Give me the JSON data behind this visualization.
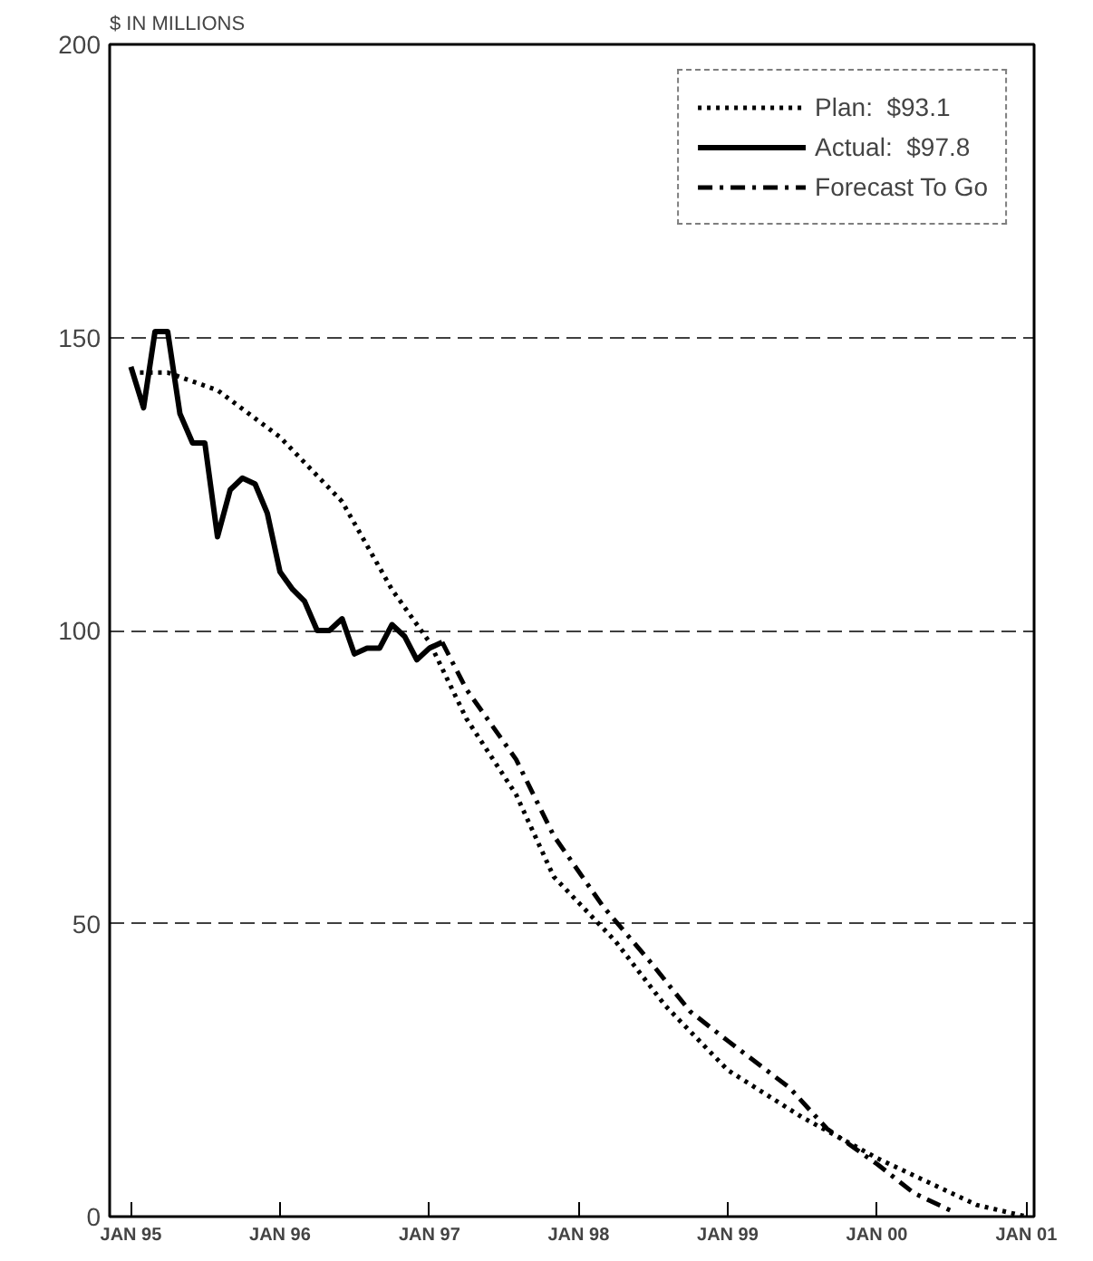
{
  "chart_data": {
    "type": "line",
    "ylabel": "$ IN MILLIONS",
    "xlim": [
      "1994-11-10",
      "2001-01-20"
    ],
    "ylim": [
      0,
      200
    ],
    "xticks": [
      {
        "value": "1995-01",
        "label": "JAN 95"
      },
      {
        "value": "1996-01",
        "label": "JAN 96"
      },
      {
        "value": "1997-01",
        "label": "JAN 97"
      },
      {
        "value": "1998-01",
        "label": "JAN 98"
      },
      {
        "value": "1999-01",
        "label": "JAN 99"
      },
      {
        "value": "2000-01",
        "label": "JAN 00"
      },
      {
        "value": "2001-01",
        "label": "JAN 01"
      }
    ],
    "yticks": [
      0,
      50,
      100,
      150,
      200
    ],
    "grid": "y",
    "legend": "top right",
    "series": [
      {
        "name": "Plan:  $93.1",
        "color": "#000000",
        "line_style": "dotted",
        "x": [
          "1995-01",
          "1995-04",
          "1995-08",
          "1996-01",
          "1996-06",
          "1996-10",
          "1997-01",
          "1997-04",
          "1997-08",
          "1997-11",
          "1998-04",
          "1998-08",
          "1999-01",
          "1999-07",
          "2000-01",
          "2000-06",
          "2000-09",
          "2001-01"
        ],
        "values": [
          144,
          144,
          141,
          133,
          122,
          107,
          98,
          85,
          72,
          58,
          47,
          36,
          25,
          17,
          10,
          5,
          2,
          0
        ]
      },
      {
        "name": "Actual:  $97.8",
        "color": "#000000",
        "line_style": "solid",
        "x": [
          "1995-01",
          "1995-02",
          "1995-03",
          "1995-04",
          "1995-05",
          "1995-06",
          "1995-07",
          "1995-08",
          "1995-09",
          "1995-10",
          "1995-11",
          "1995-12",
          "1996-01",
          "1996-02",
          "1996-03",
          "1996-04",
          "1996-05",
          "1996-06",
          "1996-07",
          "1996-08",
          "1996-09",
          "1996-10",
          "1996-11",
          "1996-12",
          "1997-01",
          "1997-02"
        ],
        "values": [
          145,
          138,
          151,
          151,
          137,
          132,
          132,
          116,
          124,
          126,
          125,
          120,
          110,
          107,
          105,
          100,
          100,
          102,
          96,
          97,
          97,
          101,
          99,
          95,
          97,
          98
        ]
      },
      {
        "name": "Forecast To Go",
        "color": "#000000",
        "line_style": "dashdot",
        "x": [
          "1997-02",
          "1997-04",
          "1997-08",
          "1997-11",
          "1998-03",
          "1998-07",
          "1998-10",
          "1999-01",
          "1999-06",
          "1999-09",
          "2000-01",
          "2000-04",
          "2000-07"
        ],
        "values": [
          98,
          90,
          78,
          65,
          53,
          43,
          35,
          30,
          22,
          15,
          9,
          4,
          1
        ]
      }
    ]
  }
}
